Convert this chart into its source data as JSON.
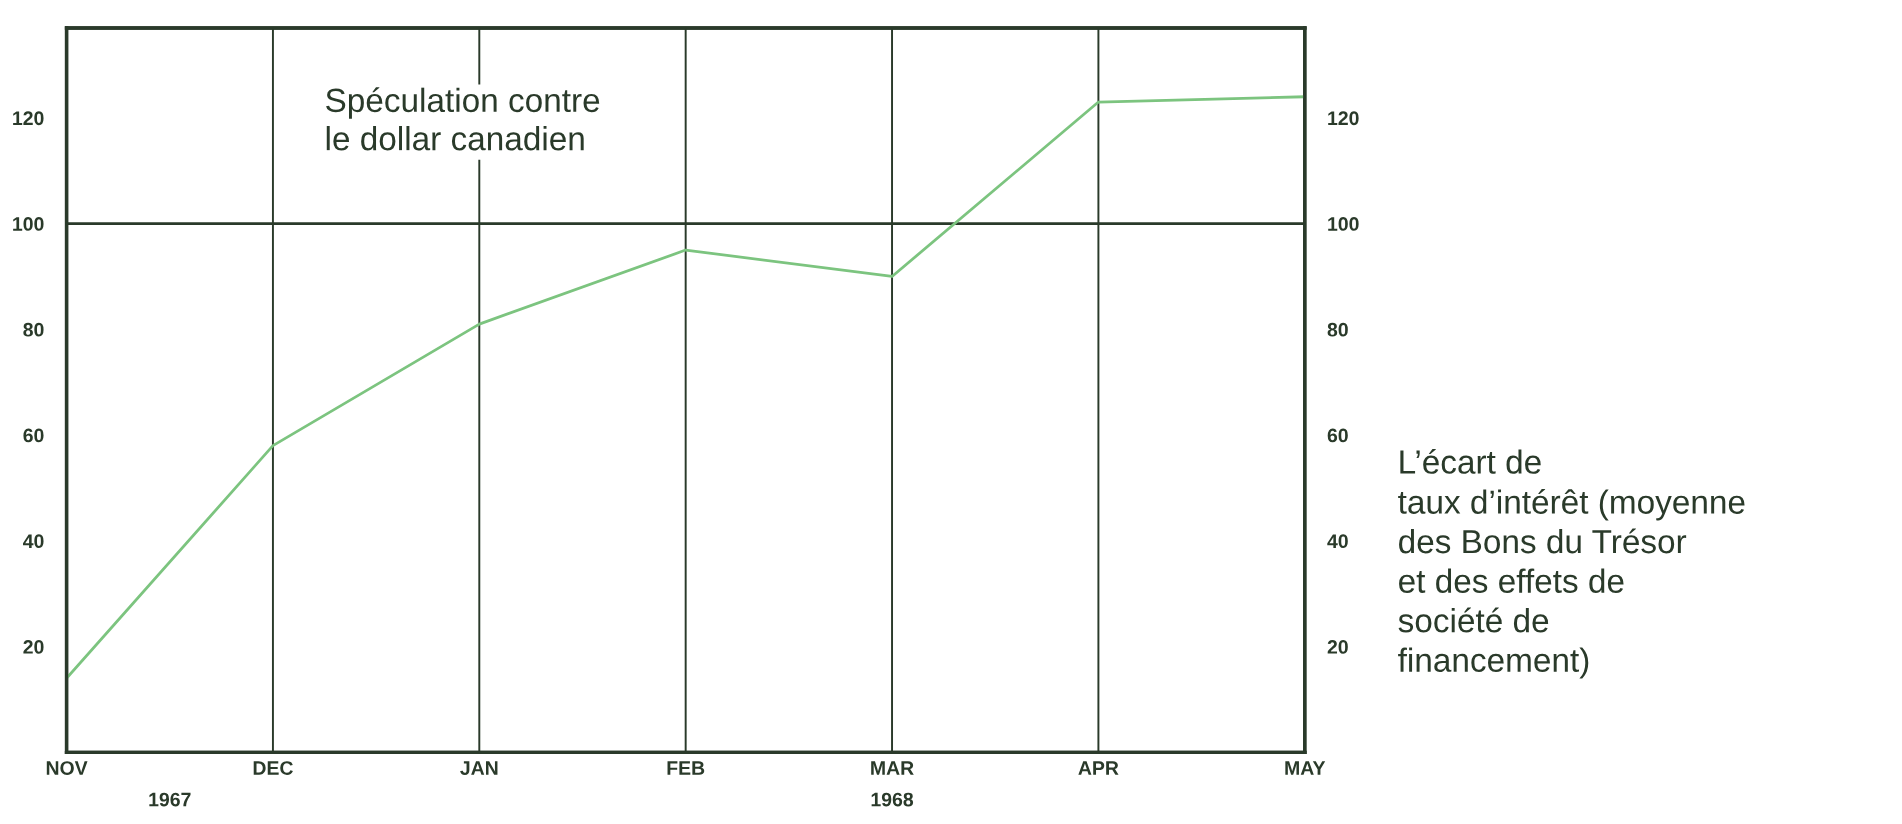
{
  "chart_data": {
    "type": "line",
    "categories": [
      "NOV",
      "DEC",
      "JAN",
      "FEB",
      "MAR",
      "APR",
      "MAY"
    ],
    "series": [
      {
        "color": "#7cc47f",
        "values": [
          14,
          58,
          81,
          95,
          90,
          123,
          124
        ]
      }
    ],
    "ylim": [
      0,
      137
    ],
    "yticks": [
      20,
      40,
      60,
      80,
      100,
      120
    ],
    "y2lim": [
      0,
      137
    ],
    "y2ticks": [
      20,
      40,
      60,
      80,
      100,
      120
    ],
    "y2label": "L’écart de\ntaux d’intérêt (moyenne\ndes Bons du Trésor\net des effets de\nsociété de\nfinancement)",
    "ref_lines": [
      {
        "axis": "y",
        "value": 100,
        "color": "#2a3a2a",
        "line_style": "solid"
      }
    ],
    "annotations": [
      "Spéculation contre\nle dollar canadien",
      "1967",
      "1968"
    ],
    "grid": "x",
    "marker": "none",
    "line_style": "solid",
    "legend": false
  }
}
